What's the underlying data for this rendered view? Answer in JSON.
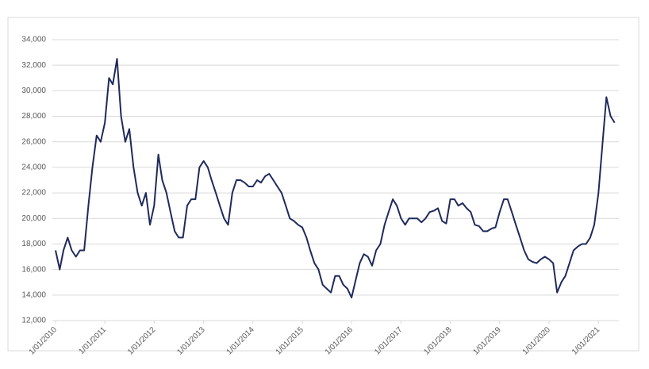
{
  "chart_data": {
    "type": "line",
    "x": [
      "2010-01-01",
      "2010-02-01",
      "2010-03-01",
      "2010-04-01",
      "2010-05-01",
      "2010-06-01",
      "2010-07-01",
      "2010-08-01",
      "2010-09-01",
      "2010-10-01",
      "2010-11-01",
      "2010-12-01",
      "2011-01-01",
      "2011-02-01",
      "2011-03-01",
      "2011-04-01",
      "2011-05-01",
      "2011-06-01",
      "2011-07-01",
      "2011-08-01",
      "2011-09-01",
      "2011-10-01",
      "2011-11-01",
      "2011-12-01",
      "2012-01-01",
      "2012-02-01",
      "2012-03-01",
      "2012-04-01",
      "2012-05-01",
      "2012-06-01",
      "2012-07-01",
      "2012-08-01",
      "2012-09-01",
      "2012-10-01",
      "2012-11-01",
      "2012-12-01",
      "2013-01-01",
      "2013-02-01",
      "2013-03-01",
      "2013-04-01",
      "2013-05-01",
      "2013-06-01",
      "2013-07-01",
      "2013-08-01",
      "2013-09-01",
      "2013-10-01",
      "2013-11-01",
      "2013-12-01",
      "2014-01-01",
      "2014-02-01",
      "2014-03-01",
      "2014-04-01",
      "2014-05-01",
      "2014-06-01",
      "2014-07-01",
      "2014-08-01",
      "2014-09-01",
      "2014-10-01",
      "2014-11-01",
      "2014-12-01",
      "2015-01-01",
      "2015-02-01",
      "2015-03-01",
      "2015-04-01",
      "2015-05-01",
      "2015-06-01",
      "2015-07-01",
      "2015-08-01",
      "2015-09-01",
      "2015-10-01",
      "2015-11-01",
      "2015-12-01",
      "2016-01-01",
      "2016-02-01",
      "2016-03-01",
      "2016-04-01",
      "2016-05-01",
      "2016-06-01",
      "2016-07-01",
      "2016-08-01",
      "2016-09-01",
      "2016-10-01",
      "2016-11-01",
      "2016-12-01",
      "2017-01-01",
      "2017-02-01",
      "2017-03-01",
      "2017-04-01",
      "2017-05-01",
      "2017-06-01",
      "2017-07-01",
      "2017-08-01",
      "2017-09-01",
      "2017-10-01",
      "2017-11-01",
      "2017-12-01",
      "2018-01-01",
      "2018-02-01",
      "2018-03-01",
      "2018-04-01",
      "2018-05-01",
      "2018-06-01",
      "2018-07-01",
      "2018-08-01",
      "2018-09-01",
      "2018-10-01",
      "2018-11-01",
      "2018-12-01",
      "2019-01-01",
      "2019-02-01",
      "2019-03-01",
      "2019-04-01",
      "2019-05-01",
      "2019-06-01",
      "2019-07-01",
      "2019-08-01",
      "2019-09-01",
      "2019-10-01",
      "2019-11-01",
      "2019-12-01",
      "2020-01-01",
      "2020-02-01",
      "2020-03-01",
      "2020-04-01",
      "2020-05-01",
      "2020-06-01",
      "2020-07-01",
      "2020-08-01",
      "2020-09-01",
      "2020-10-01",
      "2020-11-01",
      "2020-12-01",
      "2021-01-01",
      "2021-02-01",
      "2021-03-01",
      "2021-04-01",
      "2021-05-01"
    ],
    "series": [
      {
        "color": "#1f2a5c",
        "values": [
          17500,
          16000,
          17500,
          18500,
          17500,
          17000,
          17500,
          17500,
          21000,
          24000,
          26500,
          26000,
          27500,
          31000,
          30500,
          32500,
          28000,
          26000,
          27000,
          24000,
          22000,
          21000,
          22000,
          19500,
          21000,
          25000,
          23000,
          22000,
          20500,
          19000,
          18500,
          18500,
          21000,
          21500,
          21500,
          24000,
          24500,
          24000,
          23000,
          22000,
          21000,
          20000,
          19500,
          22000,
          23000,
          23000,
          22800,
          22500,
          22500,
          23000,
          22800,
          23300,
          23500,
          23000,
          22500,
          22000,
          21000,
          20000,
          19800,
          19500,
          19300,
          18500,
          17500,
          16500,
          16000,
          14800,
          14500,
          14200,
          15500,
          15500,
          14800,
          14500,
          13800,
          15200,
          16500,
          17200,
          17000,
          16300,
          17500,
          18000,
          19500,
          20500,
          21500,
          21000,
          20000,
          19500,
          20000,
          20000,
          20000,
          19700,
          20000,
          20500,
          20600,
          20800,
          19800,
          19600,
          21500,
          21500,
          21000,
          21200,
          20800,
          20500,
          19500,
          19400,
          19000,
          19000,
          19200,
          19300,
          20500,
          21500,
          21500,
          20500,
          19500,
          18500,
          17500,
          16800,
          16600,
          16500,
          16800,
          17000,
          16800,
          16500,
          14200,
          15000,
          15500,
          16500,
          17500,
          17800,
          18000,
          18000,
          18500,
          19500,
          22000,
          26000,
          29500,
          28000,
          27500
        ]
      }
    ],
    "xlim": [
      "2010-01-01",
      "2021-06-01"
    ],
    "xticks": [
      {
        "value": "2010-01-01",
        "label": "1/01/2010"
      },
      {
        "value": "2011-01-01",
        "label": "1/01/2011"
      },
      {
        "value": "2012-01-01",
        "label": "1/01/2012"
      },
      {
        "value": "2013-01-01",
        "label": "1/01/2013"
      },
      {
        "value": "2014-01-01",
        "label": "1/01/2014"
      },
      {
        "value": "2015-01-01",
        "label": "1/01/2015"
      },
      {
        "value": "2016-01-01",
        "label": "1/01/2016"
      },
      {
        "value": "2017-01-01",
        "label": "1/01/2017"
      },
      {
        "value": "2018-01-01",
        "label": "1/01/2018"
      },
      {
        "value": "2019-01-01",
        "label": "1/01/2019"
      },
      {
        "value": "2020-01-01",
        "label": "1/01/2020"
      },
      {
        "value": "2021-01-01",
        "label": "1/01/2021"
      }
    ],
    "ylim": [
      12000,
      34000
    ],
    "yticks": [
      {
        "value": 12000,
        "label": "12,000"
      },
      {
        "value": 14000,
        "label": "14,000"
      },
      {
        "value": 16000,
        "label": "16,000"
      },
      {
        "value": 18000,
        "label": "18,000"
      },
      {
        "value": 20000,
        "label": "20,000"
      },
      {
        "value": 22000,
        "label": "22,000"
      },
      {
        "value": 24000,
        "label": "24,000"
      },
      {
        "value": 26000,
        "label": "26,000"
      },
      {
        "value": 28000,
        "label": "28,000"
      },
      {
        "value": 30000,
        "label": "30,000"
      },
      {
        "value": 32000,
        "label": "32,000"
      },
      {
        "value": 34000,
        "label": "34,000"
      }
    ],
    "grid": true
  }
}
